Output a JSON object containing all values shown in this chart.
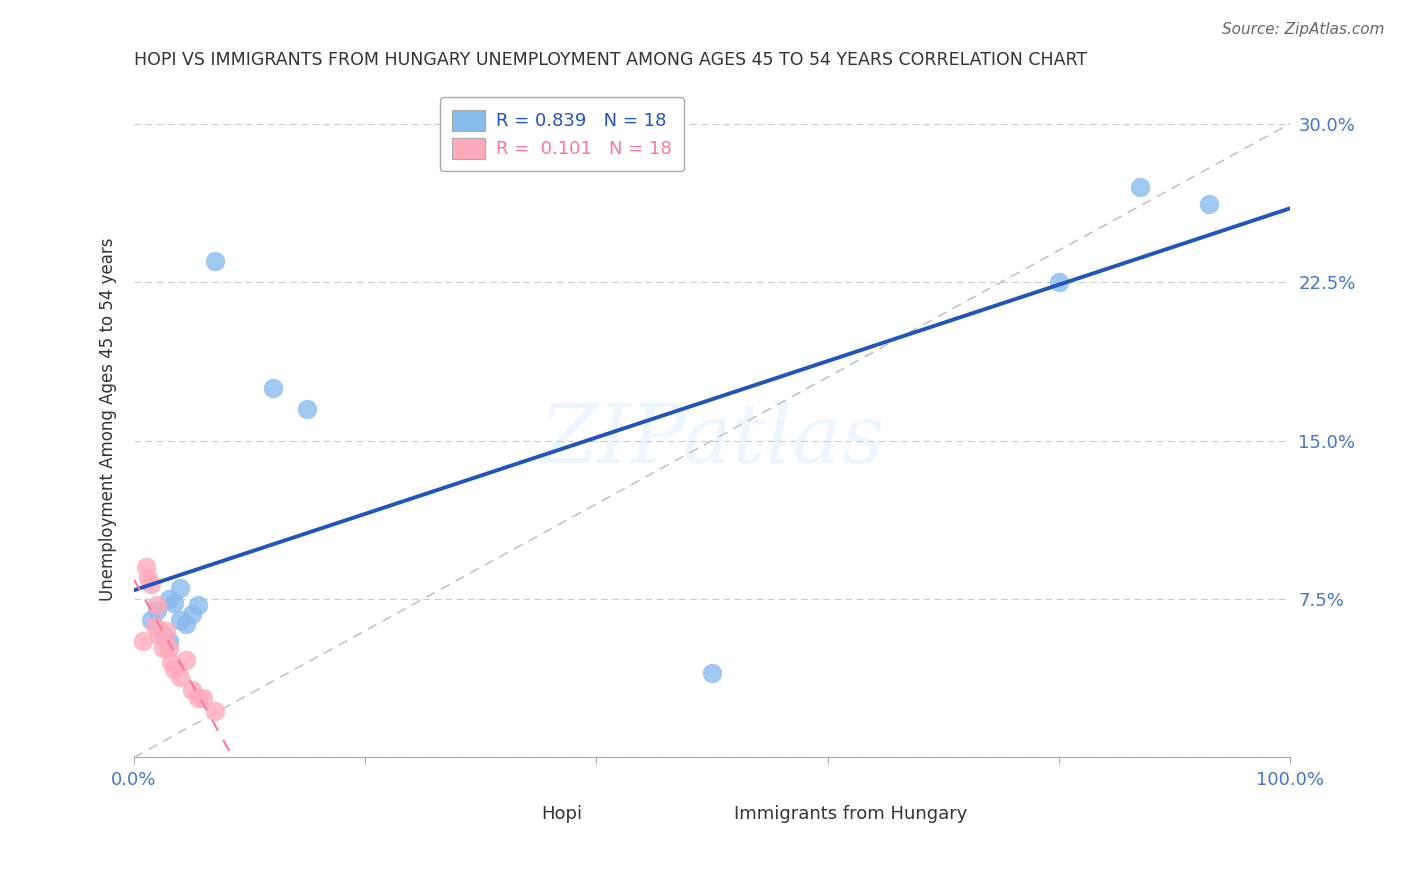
{
  "title": "HOPI VS IMMIGRANTS FROM HUNGARY UNEMPLOYMENT AMONG AGES 45 TO 54 YEARS CORRELATION CHART",
  "source": "Source: ZipAtlas.com",
  "ylabel": "Unemployment Among Ages 45 to 54 years",
  "xlabel_hopi": "Hopi",
  "xlabel_hungary": "Immigrants from Hungary",
  "xlim": [
    0.0,
    1.0
  ],
  "ylim": [
    0.0,
    0.32
  ],
  "yticks": [
    0.0,
    0.075,
    0.15,
    0.225,
    0.3
  ],
  "ytick_labels": [
    "",
    "7.5%",
    "15.0%",
    "22.5%",
    "30.0%"
  ],
  "hopi_color": "#88BBEE",
  "hungary_color": "#FFAABB",
  "hopi_line_color": "#2255BB",
  "hungary_line_color": "#FF7799",
  "ref_line_color": "#BBBBBB",
  "hopi_R": "0.839",
  "hopi_N": "18",
  "hungary_R": "0.101",
  "hungary_N": "18",
  "hopi_x": [
    0.015,
    0.02,
    0.025,
    0.03,
    0.03,
    0.035,
    0.04,
    0.04,
    0.045,
    0.05,
    0.055,
    0.07,
    0.12,
    0.15,
    0.5,
    0.8,
    0.87,
    0.93
  ],
  "hopi_y": [
    0.065,
    0.07,
    0.058,
    0.055,
    0.075,
    0.073,
    0.065,
    0.08,
    0.063,
    0.068,
    0.072,
    0.235,
    0.175,
    0.165,
    0.04,
    0.225,
    0.27,
    0.262
  ],
  "hungary_x": [
    0.008,
    0.01,
    0.012,
    0.015,
    0.018,
    0.02,
    0.022,
    0.025,
    0.028,
    0.03,
    0.032,
    0.035,
    0.04,
    0.045,
    0.05,
    0.055,
    0.06,
    0.07
  ],
  "hungary_y": [
    0.055,
    0.09,
    0.085,
    0.082,
    0.062,
    0.072,
    0.058,
    0.052,
    0.06,
    0.052,
    0.045,
    0.042,
    0.038,
    0.046,
    0.032,
    0.028,
    0.028,
    0.022
  ],
  "watermark": "ZIPatlas",
  "background_color": "#FFFFFF",
  "grid_color": "#CCCCCC",
  "legend_hopi_label": "R = 0.839   N = 18",
  "legend_hungary_label": "R =  0.101   N = 18"
}
